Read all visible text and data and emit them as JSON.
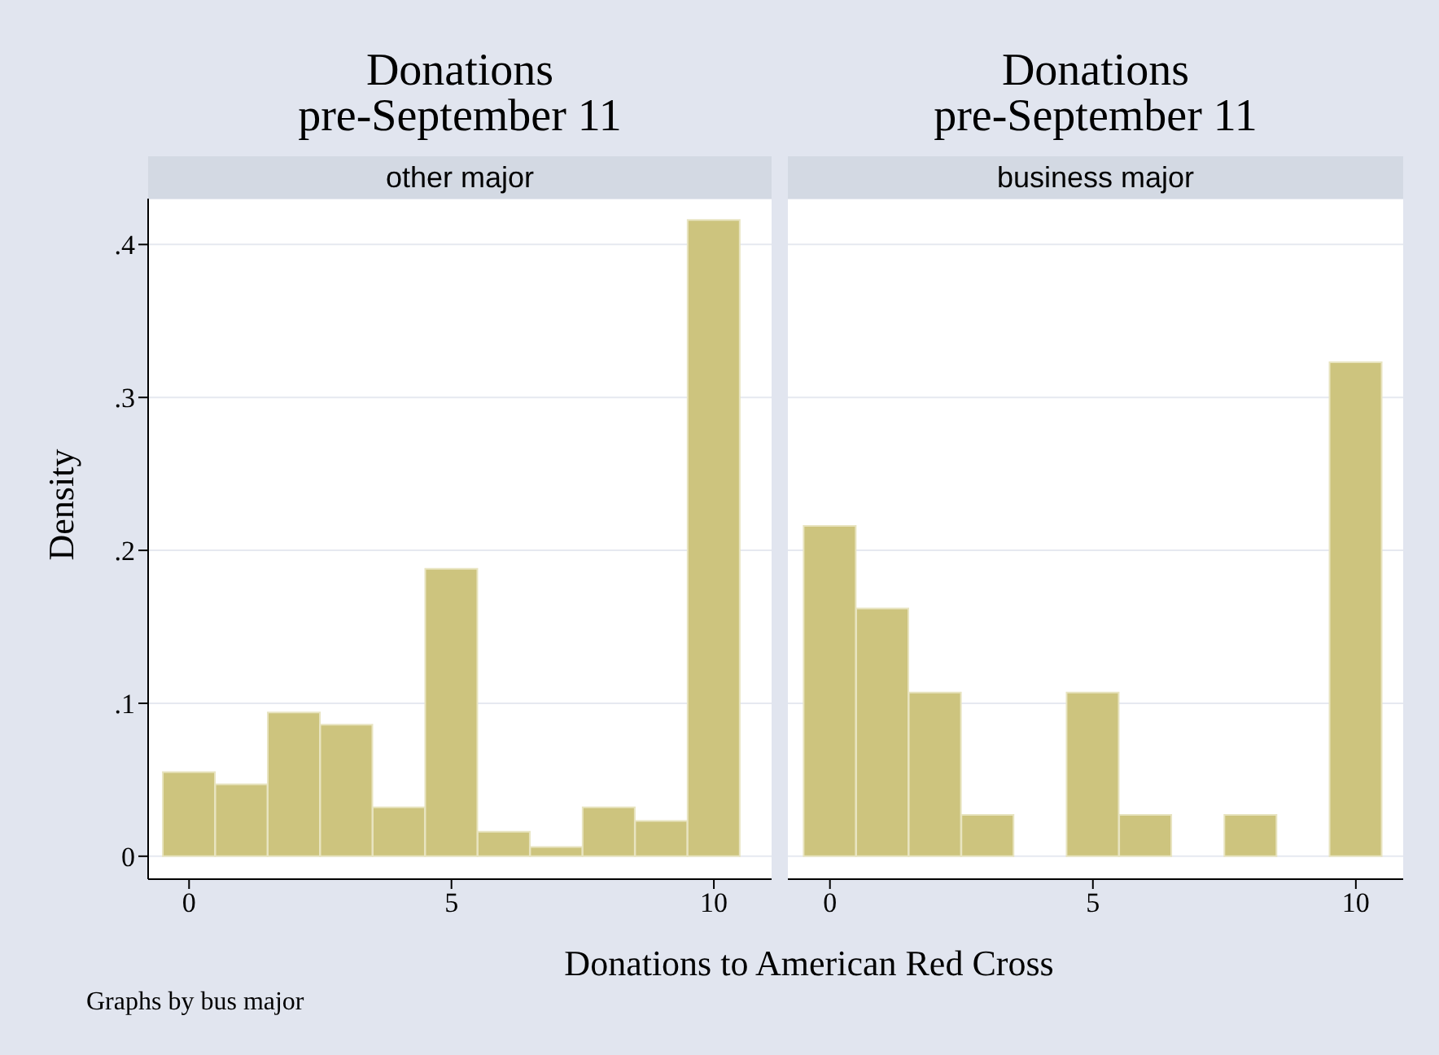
{
  "chart_data": [
    {
      "type": "histogram",
      "title": "Donations\npre-September 11",
      "subtitle": "other major",
      "xlabel": "Donations to American Red Cross",
      "ylabel": "Density",
      "annotations": [
        "Graphs by bus major"
      ],
      "bins": [
        -0.5,
        0.5,
        1.5,
        2.5,
        3.5,
        4.5,
        5.5,
        6.5,
        7.5,
        8.5,
        9.5,
        10.5
      ],
      "values": [
        0.055,
        0.047,
        0.094,
        0.086,
        0.032,
        0.188,
        0.016,
        0.006,
        0.032,
        0.023,
        0.416
      ],
      "color": "#cdc47e",
      "xlim": [
        -0.78,
        11.1
      ],
      "xticks": [
        0,
        5,
        10
      ],
      "ylim": [
        -0.015,
        0.43
      ],
      "yticks": [
        0,
        {
          "value": 0.1,
          "label": ".1"
        },
        {
          "value": 0.2,
          "label": ".2"
        },
        {
          "value": 0.3,
          "label": ".3"
        },
        {
          "value": 0.4,
          "label": ".4"
        }
      ],
      "grid": "y"
    },
    {
      "type": "histogram",
      "title": "Donations\npre-September 11",
      "subtitle": "business major",
      "bins": [
        -0.5,
        0.5,
        1.5,
        2.5,
        3.5,
        4.5,
        5.5,
        6.5,
        7.5,
        8.5,
        9.5,
        10.5
      ],
      "values": [
        0.216,
        0.162,
        0.107,
        0.027,
        0,
        0.107,
        0.027,
        0,
        0.027,
        0,
        0.323
      ],
      "color": "#cdc47e",
      "xlim": [
        -0.8,
        10.9
      ],
      "xticks": [
        0,
        5,
        10
      ],
      "ylim": [
        -0.015,
        0.43
      ],
      "yticks": [
        0,
        0.1,
        0.2,
        0.3,
        0.4
      ],
      "grid": "y",
      "tick_labels": "x"
    }
  ]
}
